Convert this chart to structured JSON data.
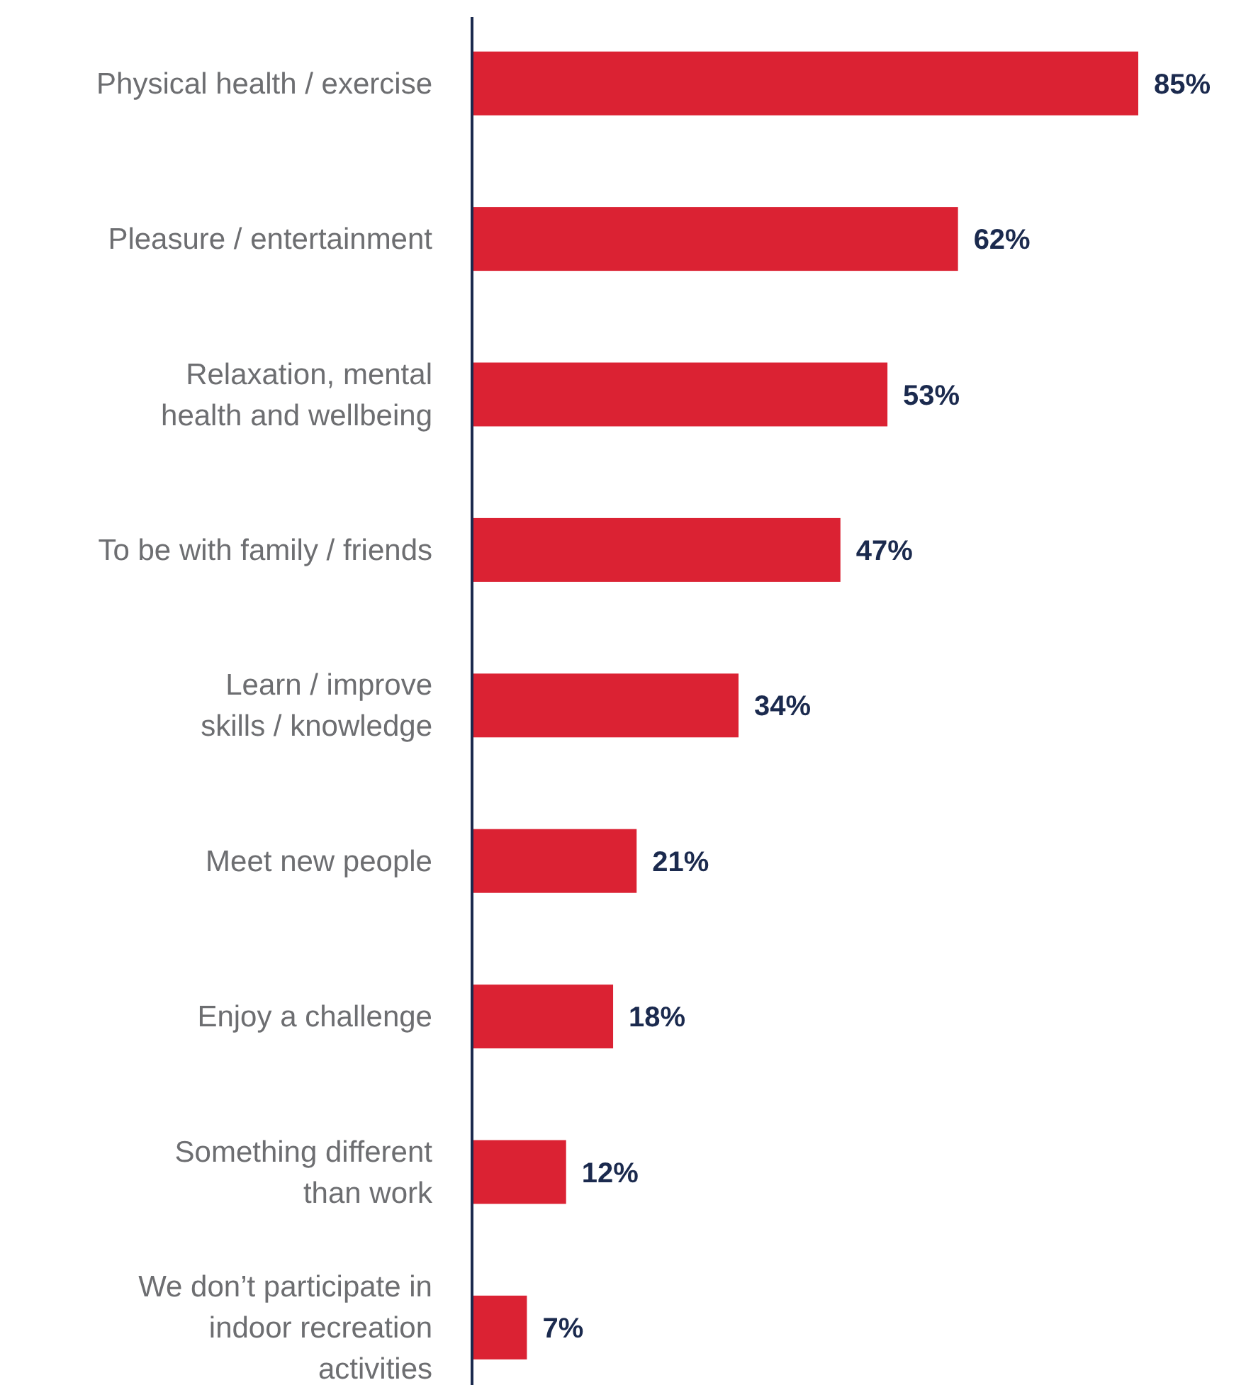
{
  "chart_data": {
    "type": "bar",
    "orientation": "horizontal",
    "categories": [
      "Physical health / exercise",
      "Pleasure / entertainment",
      "Relaxation, mental\nhealth and wellbeing",
      "To be with family / friends",
      "Learn / improve\nskills / knowledge",
      "Meet new people",
      "Enjoy a challenge",
      "Something different\nthan work",
      "We don’t participate in\nindoor recreation\nactivities"
    ],
    "values": [
      85,
      62,
      53,
      47,
      34,
      21,
      18,
      12,
      7
    ],
    "value_labels": [
      "85%",
      "62%",
      "53%",
      "47%",
      "34%",
      "21%",
      "18%",
      "12%",
      "7%"
    ],
    "color": "#db2233"
  }
}
